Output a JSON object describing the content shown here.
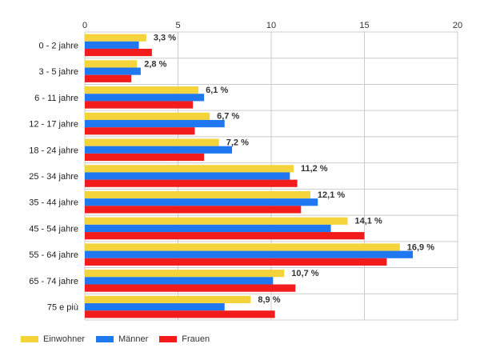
{
  "chart_data": {
    "type": "bar",
    "orientation": "horizontal",
    "categories": [
      "0 - 2 jahre",
      "3 - 5 jahre",
      "6 - 11 jahre",
      "12 - 17 jahre",
      "18 - 24 jahre",
      "25 - 34 jahre",
      "35 - 44 jahre",
      "45 - 54 jahre",
      "55 - 64 jahre",
      "65 - 74 jahre",
      "75 e più"
    ],
    "series": [
      {
        "name": "Einwohner",
        "color": "#f5d33a",
        "values": [
          3.3,
          2.8,
          6.1,
          6.7,
          7.2,
          11.2,
          12.1,
          14.1,
          16.9,
          10.7,
          8.9
        ],
        "labels": [
          "3,3 %",
          "2,8 %",
          "6,1 %",
          "6,7 %",
          "7,2 %",
          "11,2 %",
          "12,1 %",
          "14,1 %",
          "16,9 %",
          "10,7 %",
          "8,9 %"
        ]
      },
      {
        "name": "Männer",
        "color": "#1f78f0",
        "values": [
          2.9,
          3.0,
          6.4,
          7.5,
          7.9,
          11.0,
          12.5,
          13.2,
          17.6,
          10.1,
          7.5
        ]
      },
      {
        "name": "Frauen",
        "color": "#f21c1c",
        "values": [
          3.6,
          2.5,
          5.8,
          5.9,
          6.4,
          11.4,
          11.6,
          15.0,
          16.2,
          11.3,
          10.2
        ]
      }
    ],
    "xlim": [
      0,
      20
    ],
    "xticks": [
      "0",
      "5",
      "10",
      "15",
      "20"
    ],
    "grid": true,
    "legend_position": "bottom-left"
  }
}
